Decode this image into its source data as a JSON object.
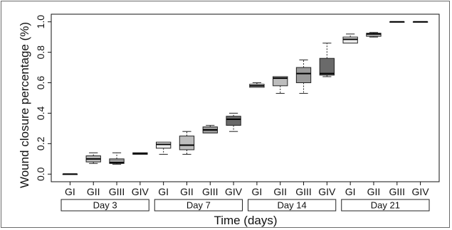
{
  "chart_data": {
    "type": "box",
    "xlabel": "Time (days)",
    "ylabel": "Wound closure percentage (%)",
    "ylim": [
      -0.05,
      1.05
    ],
    "yticks": [
      "0.0",
      "0.2",
      "0.4",
      "0.6",
      "0.8",
      "1.0"
    ],
    "groups": [
      "GI",
      "GII",
      "GIII",
      "GIV"
    ],
    "days": [
      {
        "label": "Day 3",
        "boxes": [
          {
            "group": "GI",
            "min": 0.0,
            "q1": 0.0,
            "median": 0.0,
            "q3": 0.0,
            "max": 0.0
          },
          {
            "group": "GII",
            "min": 0.07,
            "q1": 0.08,
            "median": 0.1,
            "q3": 0.12,
            "max": 0.14
          },
          {
            "group": "GIII",
            "min": 0.065,
            "q1": 0.07,
            "median": 0.075,
            "q3": 0.1,
            "max": 0.14
          },
          {
            "group": "GIV",
            "min": 0.13,
            "q1": 0.13,
            "median": 0.135,
            "q3": 0.14,
            "max": 0.14
          }
        ]
      },
      {
        "label": "Day 7",
        "boxes": [
          {
            "group": "GI",
            "min": 0.13,
            "q1": 0.17,
            "median": 0.195,
            "q3": 0.21,
            "max": 0.21
          },
          {
            "group": "GII",
            "min": 0.13,
            "q1": 0.16,
            "median": 0.19,
            "q3": 0.25,
            "max": 0.28
          },
          {
            "group": "GIII",
            "min": 0.27,
            "q1": 0.27,
            "median": 0.29,
            "q3": 0.31,
            "max": 0.32
          },
          {
            "group": "GIV",
            "min": 0.28,
            "q1": 0.32,
            "median": 0.36,
            "q3": 0.38,
            "max": 0.4
          }
        ]
      },
      {
        "label": "Day 14",
        "boxes": [
          {
            "group": "GI",
            "min": 0.57,
            "q1": 0.57,
            "median": 0.58,
            "q3": 0.59,
            "max": 0.6
          },
          {
            "group": "GII",
            "min": 0.53,
            "q1": 0.58,
            "median": 0.63,
            "q3": 0.64,
            "max": 0.64
          },
          {
            "group": "GIII",
            "min": 0.53,
            "q1": 0.6,
            "median": 0.66,
            "q3": 0.7,
            "max": 0.75
          },
          {
            "group": "GIV",
            "min": 0.64,
            "q1": 0.65,
            "median": 0.66,
            "q3": 0.76,
            "max": 0.86
          }
        ]
      },
      {
        "label": "Day 21",
        "boxes": [
          {
            "group": "GI",
            "min": 0.86,
            "q1": 0.86,
            "median": 0.885,
            "q3": 0.9,
            "max": 0.92
          },
          {
            "group": "GII",
            "min": 0.9,
            "q1": 0.905,
            "median": 0.92,
            "q3": 0.925,
            "max": 0.93
          },
          {
            "group": "GIII",
            "min": 1.0,
            "q1": 1.0,
            "median": 1.0,
            "q3": 1.0,
            "max": 1.0
          },
          {
            "group": "GIV",
            "min": 1.0,
            "q1": 1.0,
            "median": 1.0,
            "q3": 1.0,
            "max": 1.0
          }
        ]
      }
    ],
    "colors": {
      "GI": "#ececec",
      "GII": "#bdbdbd",
      "GIII": "#9a9a9a",
      "GIV": "#6a6a6a"
    },
    "grid": false
  }
}
